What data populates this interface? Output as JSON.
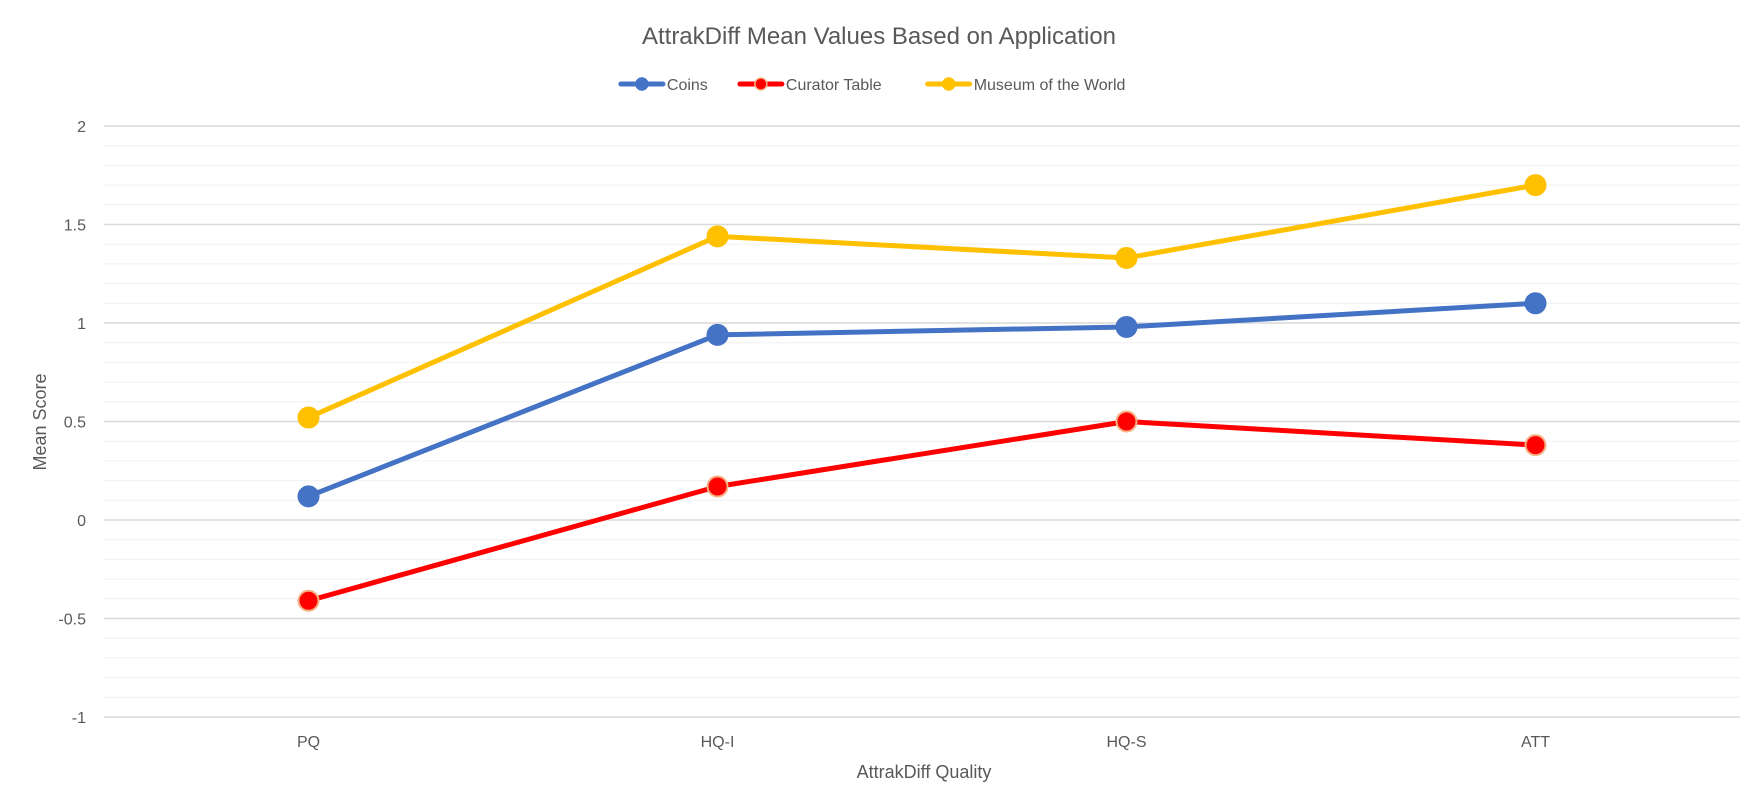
{
  "chart_data": {
    "type": "line",
    "title": "AttrakDiff Mean Values Based on Application",
    "xlabel": "AttrakDiff Quality",
    "ylabel": "Mean Score",
    "categories": [
      "PQ",
      "HQ-I",
      "HQ-S",
      "ATT"
    ],
    "ylim": [
      -1,
      2
    ],
    "yticks": [
      -1,
      -0.5,
      0,
      0.5,
      1,
      1.5,
      2
    ],
    "ytick_labels": [
      "-1",
      "-0.5",
      "0",
      "0.5",
      "1",
      "1.5",
      "2"
    ],
    "grid": true,
    "minor_grid_step": 0.1,
    "legend_position": "top",
    "series": [
      {
        "name": "Coins",
        "color": "#4472C4",
        "marker_edge": "#4472C4",
        "values": [
          0.12,
          0.94,
          0.98,
          1.1
        ]
      },
      {
        "name": "Curator Table",
        "color": "#FF0000",
        "marker_edge": "#F4B183",
        "values": [
          -0.41,
          0.17,
          0.5,
          0.38
        ]
      },
      {
        "name": "Museum of the World",
        "color": "#FFC000",
        "marker_edge": "#FFC000",
        "values": [
          0.52,
          1.44,
          1.33,
          1.7
        ]
      }
    ]
  }
}
